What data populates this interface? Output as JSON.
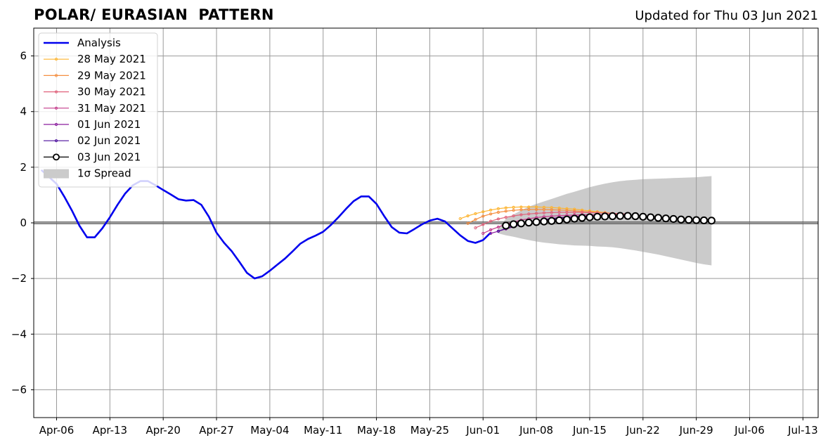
{
  "title": "POLAR/ EURASIAN  PATTERN",
  "subtitle": "Updated for Thu 03 Jun 2021",
  "chart_data": {
    "type": "line",
    "title": "POLAR/ EURASIAN  PATTERN",
    "xlabel": "",
    "ylabel": "",
    "ylim": [
      -7,
      7
    ],
    "xlim": [
      "2021-04-03",
      "2021-07-15"
    ],
    "grid": true,
    "legend_position": "top-left",
    "y_ticks": [
      -6,
      -4,
      -2,
      0,
      2,
      4,
      6
    ],
    "y_tick_labels": [
      "−6",
      "−4",
      "−2",
      "0",
      "2",
      "4",
      "6"
    ],
    "x_ticks": [
      "2021-04-06",
      "2021-04-13",
      "2021-04-20",
      "2021-04-27",
      "2021-05-04",
      "2021-05-11",
      "2021-05-18",
      "2021-05-25",
      "2021-06-01",
      "2021-06-08",
      "2021-06-15",
      "2021-06-22",
      "2021-06-29",
      "2021-07-06",
      "2021-07-13"
    ],
    "x_tick_labels": [
      "Apr-06",
      "Apr-13",
      "Apr-20",
      "Apr-27",
      "May-04",
      "May-11",
      "May-18",
      "May-25",
      "Jun-01",
      "Jun-08",
      "Jun-15",
      "Jun-22",
      "Jun-29",
      "Jul-06",
      "Jul-13"
    ],
    "series": [
      {
        "name": "Analysis",
        "color": "#0000ee",
        "start": "2021-04-04",
        "values": [
          1.9,
          1.65,
          1.4,
          0.95,
          0.45,
          -0.1,
          -0.52,
          -0.52,
          -0.2,
          0.2,
          0.65,
          1.05,
          1.35,
          1.5,
          1.5,
          1.35,
          1.18,
          1.02,
          0.85,
          0.8,
          0.82,
          0.65,
          0.22,
          -0.35,
          -0.72,
          -1.02,
          -1.4,
          -1.8,
          -2.0,
          -1.92,
          -1.72,
          -1.5,
          -1.28,
          -1.02,
          -0.75,
          -0.58,
          -0.46,
          -0.32,
          -0.08,
          0.2,
          0.5,
          0.78,
          0.95,
          0.95,
          0.68,
          0.25,
          -0.15,
          -0.35,
          -0.38,
          -0.22,
          -0.05,
          0.08,
          0.15,
          0.05,
          -0.2,
          -0.45,
          -0.65,
          -0.72,
          -0.62,
          -0.35
        ]
      },
      {
        "name": "28 May 2021",
        "color": "#fdb42f",
        "start": "2021-05-29",
        "values": [
          0.15,
          0.25,
          0.33,
          0.4,
          0.46,
          0.51,
          0.54,
          0.56,
          0.57,
          0.57,
          0.57,
          0.56,
          0.55,
          0.53,
          0.51,
          0.49,
          0.46,
          0.43,
          0.4,
          0.37,
          0.34,
          0.31,
          0.28
        ]
      },
      {
        "name": "29 May 2021",
        "color": "#f58f41",
        "start": "2021-05-30",
        "values": [
          -0.02,
          0.12,
          0.24,
          0.32,
          0.38,
          0.42,
          0.45,
          0.47,
          0.48,
          0.48,
          0.48,
          0.47,
          0.46,
          0.45,
          0.43,
          0.41,
          0.39,
          0.37,
          0.35,
          0.33,
          0.31,
          0.29
        ]
      },
      {
        "name": "30 May 2021",
        "color": "#e0627b",
        "start": "2021-05-31",
        "values": [
          -0.18,
          -0.06,
          0.06,
          0.14,
          0.2,
          0.25,
          0.29,
          0.32,
          0.34,
          0.36,
          0.37,
          0.38,
          0.38,
          0.38,
          0.38,
          0.37,
          0.36,
          0.35,
          0.34,
          0.33,
          0.32
        ]
      },
      {
        "name": "31 May 2021",
        "color": "#c43a8a",
        "start": "2021-06-01",
        "values": [
          -0.38,
          -0.25,
          -0.15,
          -0.05,
          0.03,
          0.1,
          0.15,
          0.19,
          0.22,
          0.24,
          0.26,
          0.27,
          0.28,
          0.29,
          0.29,
          0.29,
          0.29,
          0.29,
          0.29,
          0.28
        ]
      },
      {
        "name": "01 Jun 2021",
        "color": "#8b1e9e",
        "start": "2021-06-02",
        "values": [
          -0.38,
          -0.3,
          -0.22,
          -0.14,
          -0.06,
          0.01,
          0.07,
          0.12,
          0.16,
          0.19,
          0.21,
          0.23,
          0.24,
          0.25,
          0.25,
          0.25,
          0.25,
          0.25,
          0.24
        ]
      },
      {
        "name": "02 Jun 2021",
        "color": "#4a0c9c",
        "start": "2021-06-03",
        "values": [
          -0.3,
          -0.2,
          -0.12,
          -0.06,
          0.0,
          0.05,
          0.1,
          0.14,
          0.17,
          0.19,
          0.21,
          0.22,
          0.23,
          0.24,
          0.24,
          0.24,
          0.24,
          0.23
        ]
      },
      {
        "name": "03 Jun 2021",
        "color": "#000000",
        "start": "2021-06-04",
        "values": [
          -0.1,
          -0.05,
          -0.02,
          0.01,
          0.03,
          0.05,
          0.07,
          0.09,
          0.12,
          0.15,
          0.18,
          0.2,
          0.22,
          0.23,
          0.24,
          0.25,
          0.25,
          0.24,
          0.22,
          0.2,
          0.18,
          0.16,
          0.14,
          0.12,
          0.11,
          0.1,
          0.09,
          0.08
        ]
      }
    ],
    "spread": {
      "name": "1σ Spread",
      "color": "#cbcbcb",
      "start": "2021-06-03",
      "upper": [
        -0.2,
        0.15,
        0.3,
        0.45,
        0.58,
        0.68,
        0.77,
        0.86,
        0.95,
        1.04,
        1.12,
        1.2,
        1.28,
        1.35,
        1.41,
        1.46,
        1.5,
        1.53,
        1.55,
        1.57,
        1.58,
        1.59,
        1.6,
        1.61,
        1.62,
        1.63,
        1.64,
        1.66,
        1.68
      ],
      "lower": [
        -0.38,
        -0.45,
        -0.5,
        -0.56,
        -0.62,
        -0.67,
        -0.71,
        -0.74,
        -0.77,
        -0.79,
        -0.81,
        -0.82,
        -0.83,
        -0.85,
        -0.86,
        -0.88,
        -0.91,
        -0.95,
        -0.99,
        -1.04,
        -1.09,
        -1.14,
        -1.2,
        -1.26,
        -1.32,
        -1.38,
        -1.44,
        -1.49,
        -1.53
      ]
    }
  }
}
